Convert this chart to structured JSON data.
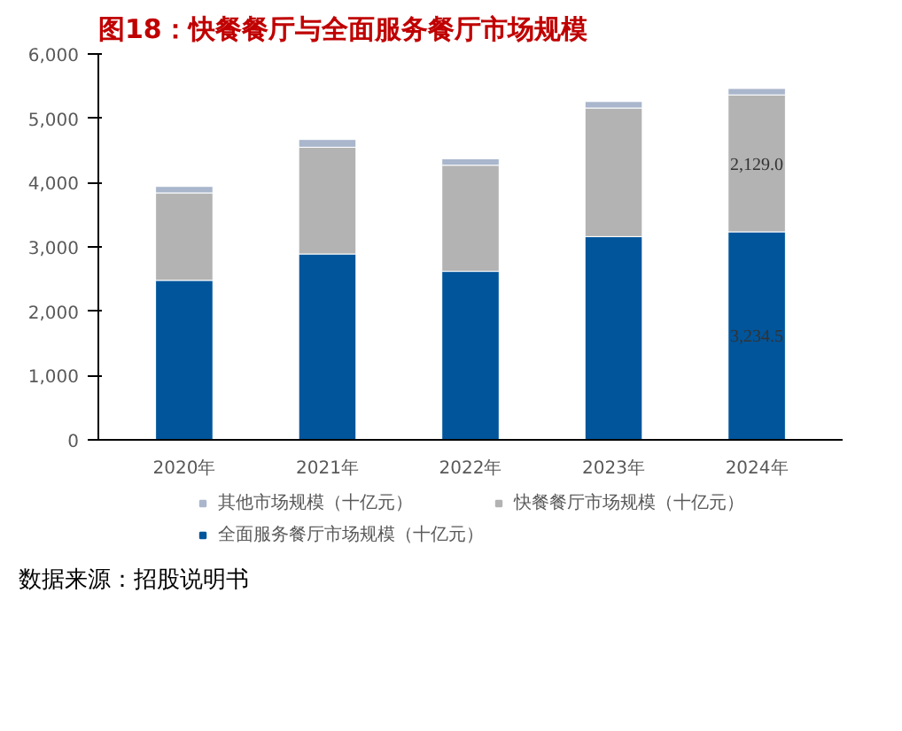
{
  "chart_data": {
    "type": "bar",
    "title": "图18：快餐餐厅与全面服务餐厅市场规模",
    "categories": [
      "2020年",
      "2021年",
      "2022年",
      "2023年",
      "2024年"
    ],
    "stacked": true,
    "series": [
      {
        "name": "全面服务餐厅市场规模（十亿元）",
        "color": "#00559b",
        "values": [
          2480,
          2890,
          2620,
          3160,
          3234.5
        ],
        "value_labels": [
          null,
          null,
          null,
          null,
          "3,234.5"
        ]
      },
      {
        "name": "快餐餐厅市场规模（十亿元）",
        "color": "#b3b3b3",
        "values": [
          1360,
          1660,
          1650,
          2000,
          2129.0
        ],
        "value_labels": [
          null,
          null,
          null,
          null,
          "2,129.0"
        ]
      },
      {
        "name": "其他市场规模（十亿元）",
        "color": "#a9b6cc",
        "values": [
          100,
          120,
          100,
          100,
          100
        ]
      }
    ],
    "ylim": [
      0,
      6000
    ],
    "yticks": [
      0,
      {
        "value": 1000,
        "label": "1,000"
      },
      {
        "value": 2000,
        "label": "2,000"
      },
      {
        "value": 3000,
        "label": "3,000"
      },
      {
        "value": 4000,
        "label": "4,000"
      },
      {
        "value": 5000,
        "label": "5,000"
      },
      {
        "value": 6000,
        "label": "6,000"
      }
    ],
    "grid": false,
    "legend": "bottom",
    "annotations": [
      "数据来源：招股说明书"
    ]
  }
}
